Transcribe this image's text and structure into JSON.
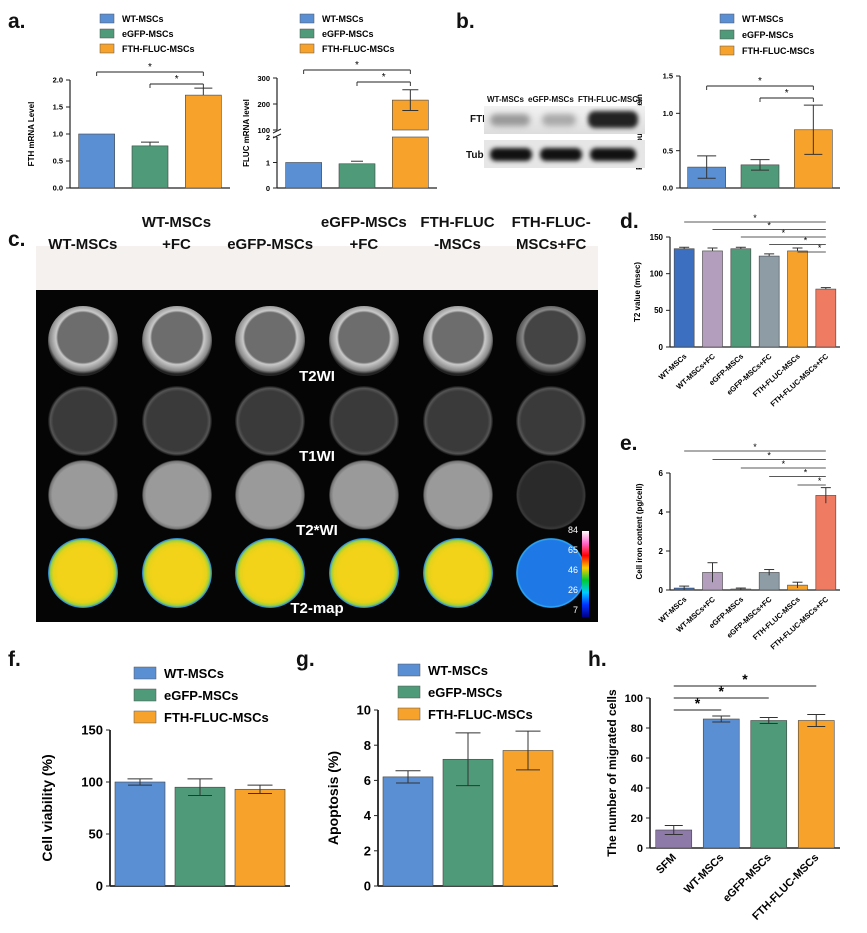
{
  "labels": {
    "a": "a.",
    "b": "b.",
    "c": "c.",
    "d": "d.",
    "e": "e.",
    "f": "f.",
    "g": "g.",
    "h": "h."
  },
  "colors": {
    "blue": "#5b8fd4",
    "green": "#4f9a78",
    "orange": "#f7a22b",
    "purple": "#8e7aa8",
    "gray": "#8e9ca6",
    "violet": "#b39fbd",
    "salmon": "#ef7b63",
    "darkblue": "#3c6fc0"
  },
  "legend3": [
    "WT-MSCs",
    "eGFP-MSCs",
    "FTH-FLUC-MSCs"
  ],
  "chart_data": [
    {
      "id": "a1",
      "type": "bar",
      "ylabel": "FTH mRNA Level",
      "ylim": [
        0,
        2.0
      ],
      "yticks": [
        "0.0",
        "0.5",
        "1.0",
        "1.5",
        "2.0"
      ],
      "series": [
        {
          "name": "WT-MSCs",
          "values": [
            1.0
          ]
        },
        {
          "name": "eGFP-MSCs",
          "values": [
            0.78
          ]
        },
        {
          "name": "FTH-FLUC-MSCs",
          "values": [
            1.72
          ]
        }
      ],
      "errors": [
        0,
        0.07,
        0.13
      ],
      "significance": [
        "*",
        "*"
      ]
    },
    {
      "id": "a2",
      "type": "bar",
      "ylabel": "FLUC  mRNA level",
      "broken_axis": true,
      "yticks": [
        "0",
        "1",
        "2",
        "100",
        "200",
        "300"
      ],
      "series": [
        {
          "name": "WT-MSCs",
          "values": [
            1.0
          ]
        },
        {
          "name": "eGFP-MSCs",
          "values": [
            0.95
          ]
        },
        {
          "name": "FTH-FLUC-MSCs",
          "values": [
            215
          ]
        }
      ],
      "errors": [
        0,
        0.1,
        40
      ],
      "significance": [
        "*",
        "*"
      ]
    },
    {
      "id": "b",
      "type": "bar",
      "ylabel": "FTH/Tubulin Protein",
      "ylim": [
        0,
        1.5
      ],
      "yticks": [
        "0.0",
        "0.5",
        "1.0",
        "1.5"
      ],
      "series": [
        {
          "name": "WT-MSCs",
          "values": [
            0.28
          ]
        },
        {
          "name": "eGFP-MSCs",
          "values": [
            0.31
          ]
        },
        {
          "name": "FTH-FLUC-MSCs",
          "values": [
            0.78
          ]
        }
      ],
      "errors": [
        0.15,
        0.07,
        0.33
      ],
      "significance": [
        "*",
        "*"
      ]
    },
    {
      "id": "d",
      "type": "bar",
      "ylabel": "T2 value (msec)",
      "ylim": [
        0,
        150
      ],
      "yticks": [
        "0",
        "50",
        "100",
        "150"
      ],
      "categories": [
        "WT-MSCs",
        "WT-MSCs+FC",
        "eGFP-MSCs",
        "eGFP-MSCs+FC",
        "FTH-FLUC-MSCs",
        "FTH-FLUC-MSCs+FC"
      ],
      "values": [
        134,
        131,
        134,
        124,
        131,
        79
      ],
      "errors": [
        2,
        4,
        2,
        3,
        4,
        2
      ],
      "significance": [
        "*",
        "*",
        "*",
        "*",
        "*"
      ]
    },
    {
      "id": "e",
      "type": "bar",
      "ylabel": "Cell iron content (pg/cell)",
      "ylim": [
        0,
        6
      ],
      "yticks": [
        "0",
        "2",
        "4",
        "6"
      ],
      "categories": [
        "WT-MSCs",
        "WT-MSCs+FC",
        "eGFP-MSCs",
        "eGFP-MSCs+FC",
        "FTH-FLUC-MSCs",
        "FTH-FLUC-MSCs+FC"
      ],
      "values": [
        0.1,
        0.9,
        0.05,
        0.9,
        0.25,
        4.85
      ],
      "errors": [
        0.1,
        0.5,
        0.05,
        0.15,
        0.15,
        0.4
      ],
      "significance": [
        "*",
        "*",
        "*",
        "*",
        "*"
      ]
    },
    {
      "id": "f",
      "type": "bar",
      "ylabel": "Cell viability (%)",
      "ylim": [
        0,
        150
      ],
      "yticks": [
        "0",
        "50",
        "100",
        "150"
      ],
      "series": [
        {
          "name": "WT-MSCs",
          "values": [
            100
          ]
        },
        {
          "name": "eGFP-MSCs",
          "values": [
            95
          ]
        },
        {
          "name": "FTH-FLUC-MSCs",
          "values": [
            93
          ]
        }
      ],
      "errors": [
        3,
        8,
        4
      ]
    },
    {
      "id": "g",
      "type": "bar",
      "ylabel": "Apoptosis (%)",
      "ylim": [
        0,
        10
      ],
      "yticks": [
        "0",
        "2",
        "4",
        "6",
        "8",
        "10"
      ],
      "series": [
        {
          "name": "WT-MSCs",
          "values": [
            6.2
          ]
        },
        {
          "name": "eGFP-MSCs",
          "values": [
            7.2
          ]
        },
        {
          "name": "FTH-FLUC-MSCs",
          "values": [
            7.7
          ]
        }
      ],
      "errors": [
        0.35,
        1.5,
        1.1
      ]
    },
    {
      "id": "h",
      "type": "bar",
      "ylabel": "The number of migrated cells",
      "ylim": [
        0,
        100
      ],
      "yticks": [
        "0",
        "20",
        "40",
        "60",
        "80",
        "100"
      ],
      "categories": [
        "SFM",
        "WT-MSCs",
        "eGFP-MSCs",
        "FTH-FLUC-MSCs"
      ],
      "values": [
        12,
        86,
        85,
        85
      ],
      "errors": [
        3,
        2,
        2,
        4
      ],
      "significance": [
        "*",
        "*",
        "*"
      ]
    }
  ],
  "western": {
    "columns": [
      "WT-MSCs",
      "eGFP-MSCs",
      "FTH-FLUC-MSCs"
    ],
    "rows": [
      "FTH",
      "Tubulin"
    ]
  },
  "mri": {
    "columns": [
      [
        "",
        "WT-MSCs"
      ],
      [
        "WT-MSCs",
        "+FC"
      ],
      [
        "",
        "eGFP-MSCs"
      ],
      [
        "eGFP-MSCs",
        "+FC"
      ],
      [
        "FTH-FLUC",
        "-MSCs"
      ],
      [
        "FTH-FLUC-",
        "MSCs+FC"
      ]
    ],
    "rows": [
      "T2WI",
      "T1WI",
      "T2*WI",
      "T2-map"
    ],
    "colorbar": [
      "84",
      "65",
      "46",
      "26",
      "7"
    ]
  }
}
